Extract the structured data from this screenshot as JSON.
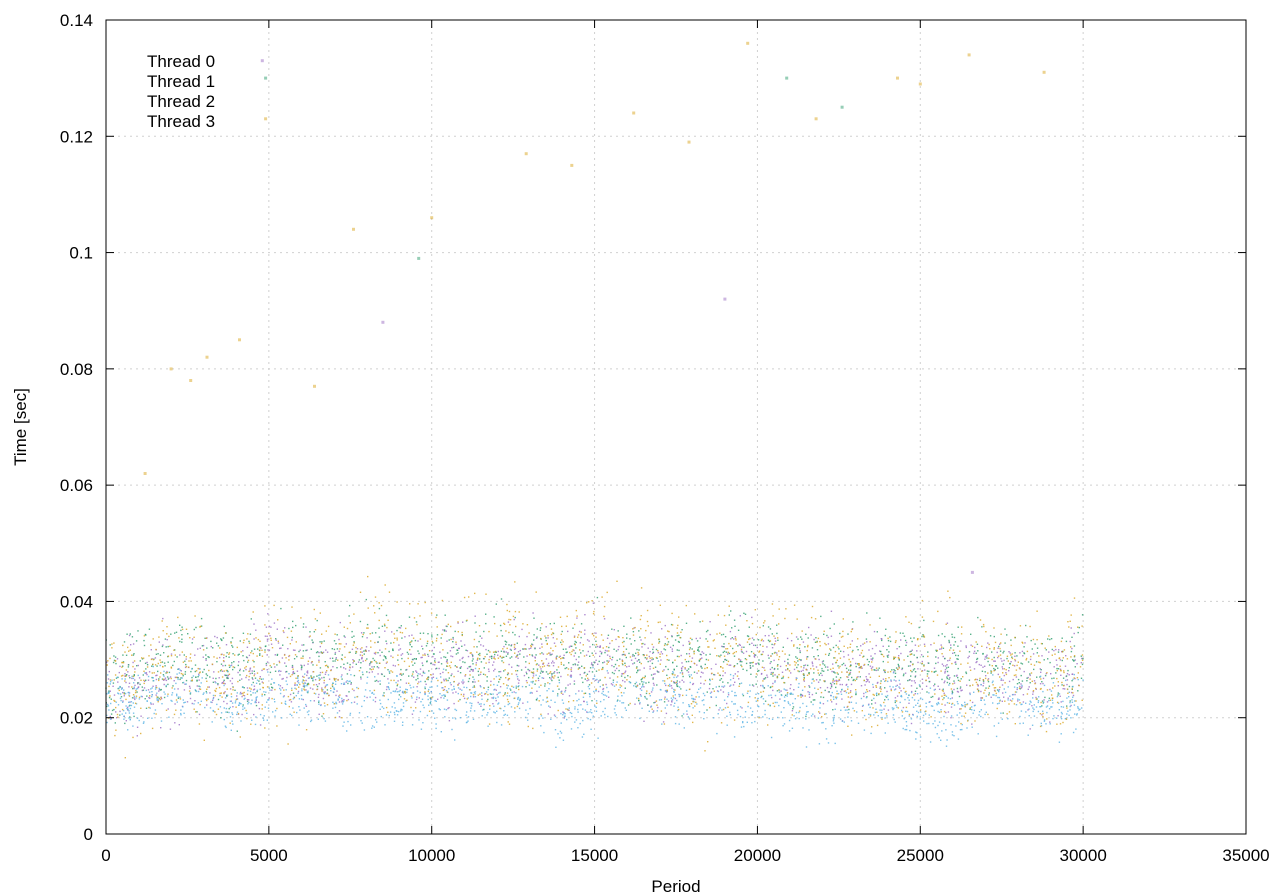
{
  "chart_data": {
    "type": "scatter",
    "title": "",
    "xlabel": "Period",
    "ylabel": "Time [sec]",
    "xlim": [
      0,
      35000
    ],
    "ylim": [
      0,
      0.14
    ],
    "x_ticks": [
      0,
      5000,
      10000,
      15000,
      20000,
      25000,
      30000,
      35000
    ],
    "x_tick_labels": [
      "0",
      "5000",
      "10000",
      "15000",
      "20000",
      "25000",
      "30000",
      "35000"
    ],
    "y_ticks": [
      0,
      0.02,
      0.04,
      0.06,
      0.08,
      0.1,
      0.12,
      0.14
    ],
    "y_tick_labels": [
      "0",
      "0.02",
      "0.04",
      "0.06",
      "0.08",
      "0.1",
      "0.12",
      "0.14"
    ],
    "grid": true,
    "legend_position": "top-left",
    "series": [
      {
        "name": "Thread 0",
        "color": "#9b6dc4",
        "x_range": [
          0,
          30000
        ],
        "typical_range": [
          0.02,
          0.036
        ],
        "baseline_profile": [
          [
            0,
            0.026
          ],
          [
            1000,
            0.025
          ],
          [
            2000,
            0.027
          ],
          [
            3000,
            0.028
          ],
          [
            4000,
            0.025
          ],
          [
            5000,
            0.03
          ],
          [
            6000,
            0.028
          ],
          [
            7000,
            0.027
          ],
          [
            8000,
            0.03
          ],
          [
            9000,
            0.029
          ],
          [
            10000,
            0.028
          ],
          [
            11000,
            0.029
          ],
          [
            12000,
            0.028
          ],
          [
            13000,
            0.03
          ],
          [
            14000,
            0.028
          ],
          [
            15000,
            0.03
          ],
          [
            16000,
            0.029
          ],
          [
            17000,
            0.028
          ],
          [
            18000,
            0.028
          ],
          [
            19000,
            0.029
          ],
          [
            20000,
            0.03
          ],
          [
            21000,
            0.028
          ],
          [
            22000,
            0.027
          ],
          [
            23000,
            0.028
          ],
          [
            24000,
            0.027
          ],
          [
            25000,
            0.028
          ],
          [
            26000,
            0.027
          ],
          [
            27000,
            0.028
          ],
          [
            28000,
            0.027
          ],
          [
            29000,
            0.026
          ],
          [
            30000,
            0.028
          ]
        ],
        "sampled_outliers": [
          [
            4800,
            0.133
          ],
          [
            8500,
            0.088
          ],
          [
            19000,
            0.092
          ],
          [
            26600,
            0.045
          ]
        ]
      },
      {
        "name": "Thread 1",
        "color": "#2e9e6e",
        "x_range": [
          0,
          30000
        ],
        "typical_range": [
          0.022,
          0.038
        ],
        "baseline_profile": [
          [
            0,
            0.027
          ],
          [
            1000,
            0.028
          ],
          [
            2000,
            0.029
          ],
          [
            3000,
            0.03
          ],
          [
            4000,
            0.027
          ],
          [
            5000,
            0.031
          ],
          [
            6000,
            0.03
          ],
          [
            7000,
            0.029
          ],
          [
            8000,
            0.032
          ],
          [
            9000,
            0.031
          ],
          [
            10000,
            0.03
          ],
          [
            11000,
            0.031
          ],
          [
            12000,
            0.03
          ],
          [
            13000,
            0.031
          ],
          [
            14000,
            0.03
          ],
          [
            15000,
            0.031
          ],
          [
            16000,
            0.03
          ],
          [
            17000,
            0.029
          ],
          [
            18000,
            0.03
          ],
          [
            19000,
            0.03
          ],
          [
            20000,
            0.031
          ],
          [
            21000,
            0.029
          ],
          [
            22000,
            0.029
          ],
          [
            23000,
            0.03
          ],
          [
            24000,
            0.029
          ],
          [
            25000,
            0.03
          ],
          [
            26000,
            0.029
          ],
          [
            27000,
            0.03
          ],
          [
            28000,
            0.029
          ],
          [
            29000,
            0.028
          ],
          [
            30000,
            0.03
          ]
        ],
        "sampled_outliers": [
          [
            4900,
            0.13
          ],
          [
            9600,
            0.099
          ],
          [
            20900,
            0.13
          ],
          [
            22600,
            0.125
          ]
        ]
      },
      {
        "name": "Thread 2",
        "color": "#5bb4e5",
        "x_range": [
          0,
          30000
        ],
        "typical_range": [
          0.017,
          0.028
        ],
        "baseline_profile": [
          [
            0,
            0.023
          ],
          [
            1000,
            0.022
          ],
          [
            2000,
            0.025
          ],
          [
            3000,
            0.024
          ],
          [
            4000,
            0.022
          ],
          [
            5000,
            0.024
          ],
          [
            6000,
            0.024
          ],
          [
            7000,
            0.024
          ],
          [
            8000,
            0.022
          ],
          [
            9000,
            0.023
          ],
          [
            10000,
            0.024
          ],
          [
            11000,
            0.023
          ],
          [
            12000,
            0.023
          ],
          [
            13000,
            0.024
          ],
          [
            14000,
            0.021
          ],
          [
            15000,
            0.023
          ],
          [
            16000,
            0.023
          ],
          [
            17000,
            0.024
          ],
          [
            18000,
            0.023
          ],
          [
            19000,
            0.022
          ],
          [
            20000,
            0.023
          ],
          [
            21000,
            0.022
          ],
          [
            22000,
            0.021
          ],
          [
            23000,
            0.021
          ],
          [
            24000,
            0.022
          ],
          [
            25000,
            0.021
          ],
          [
            26000,
            0.02
          ],
          [
            27000,
            0.022
          ],
          [
            28000,
            0.023
          ],
          [
            29000,
            0.021
          ],
          [
            30000,
            0.023
          ]
        ],
        "sampled_outliers": []
      },
      {
        "name": "Thread 3",
        "color": "#d9a520",
        "x_range": [
          0,
          30000
        ],
        "typical_range": [
          0.018,
          0.04
        ],
        "baseline_profile": [
          [
            0,
            0.026
          ],
          [
            1000,
            0.027
          ],
          [
            2000,
            0.03
          ],
          [
            3000,
            0.028
          ],
          [
            4000,
            0.026
          ],
          [
            5000,
            0.03
          ],
          [
            6000,
            0.028
          ],
          [
            7000,
            0.029
          ],
          [
            8000,
            0.033
          ],
          [
            9000,
            0.031
          ],
          [
            10000,
            0.03
          ],
          [
            11000,
            0.031
          ],
          [
            12000,
            0.03
          ],
          [
            13000,
            0.03
          ],
          [
            14000,
            0.029
          ],
          [
            15000,
            0.032
          ],
          [
            16000,
            0.031
          ],
          [
            17000,
            0.03
          ],
          [
            18000,
            0.029
          ],
          [
            19000,
            0.03
          ],
          [
            20000,
            0.031
          ],
          [
            21000,
            0.029
          ],
          [
            22000,
            0.028
          ],
          [
            23000,
            0.029
          ],
          [
            24000,
            0.028
          ],
          [
            25000,
            0.029
          ],
          [
            26000,
            0.028
          ],
          [
            27000,
            0.029
          ],
          [
            28000,
            0.028
          ],
          [
            29000,
            0.027
          ],
          [
            30000,
            0.03
          ]
        ],
        "sampled_outliers": [
          [
            1200,
            0.062
          ],
          [
            2000,
            0.08
          ],
          [
            2600,
            0.078
          ],
          [
            3100,
            0.082
          ],
          [
            4100,
            0.085
          ],
          [
            4900,
            0.123
          ],
          [
            6400,
            0.077
          ],
          [
            7600,
            0.104
          ],
          [
            10000,
            0.106
          ],
          [
            12900,
            0.117
          ],
          [
            14300,
            0.115
          ],
          [
            16200,
            0.124
          ],
          [
            17900,
            0.119
          ],
          [
            19700,
            0.136
          ],
          [
            21800,
            0.123
          ],
          [
            24300,
            0.13
          ],
          [
            25000,
            0.129
          ],
          [
            26500,
            0.134
          ],
          [
            28800,
            0.131
          ]
        ]
      }
    ]
  }
}
